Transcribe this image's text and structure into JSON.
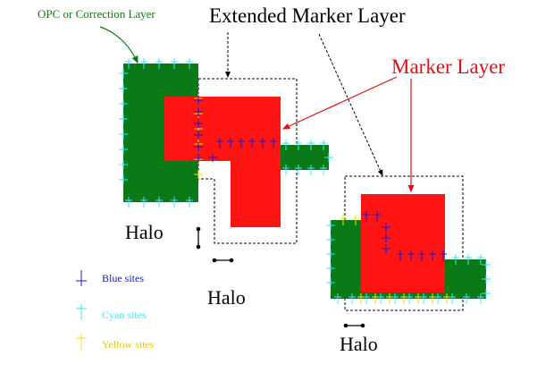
{
  "labels": {
    "opc_layer": "OPC or Correction Layer",
    "extended_marker": "Extended Marker Layer",
    "marker_layer": "Marker Layer",
    "halo_1": "Halo",
    "halo_2": "Halo",
    "halo_3": "Halo"
  },
  "legend": {
    "blue": "Blue sites",
    "cyan": "Cyan sites",
    "yellow": "Yellow sites"
  },
  "colors": {
    "opc_green": "#0a7a16",
    "marker_red": "#ff1414",
    "blue_site": "#1a1acc",
    "cyan_site": "#33e8ff",
    "yellow_site": "#f5e30a",
    "opc_text": "#0a7a16",
    "marker_text": "#e01010"
  }
}
